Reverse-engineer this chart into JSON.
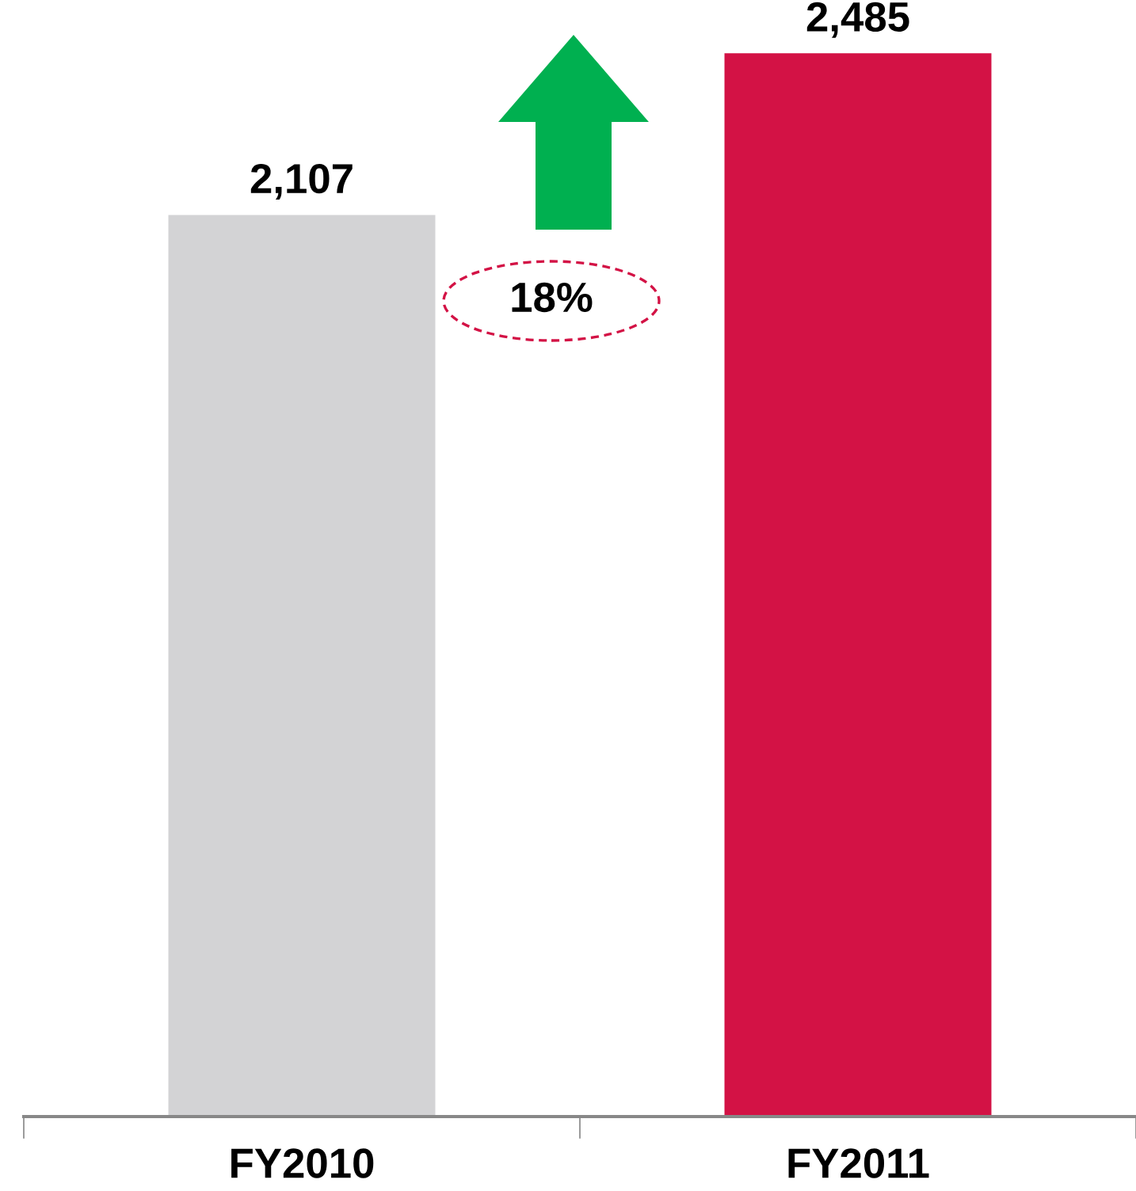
{
  "chart_data": {
    "type": "bar",
    "categories": [
      "FY2010",
      "FY2011"
    ],
    "values": [
      2107,
      2485
    ],
    "colors": [
      "#d3d3d5",
      "#d31245"
    ],
    "value_labels": [
      "2,107",
      "2,485"
    ],
    "grid": false,
    "legend": false,
    "tick_labels": "x",
    "annotations": [
      "18%"
    ]
  }
}
